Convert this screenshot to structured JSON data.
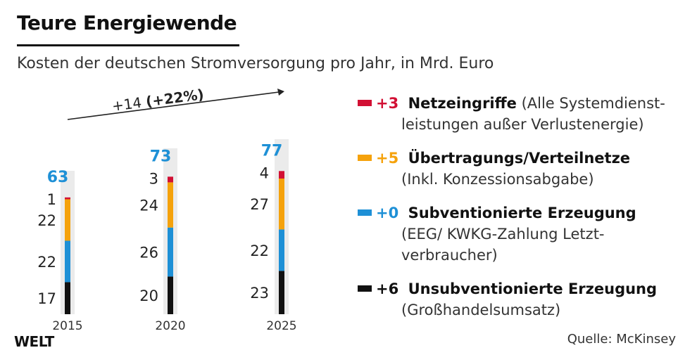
{
  "title": "Teure Energiewende",
  "subtitle": "Kosten der deutschen Stromversorgung pro Jahr, in Mrd. Euro",
  "colors": {
    "red": "#d21034",
    "orange": "#f5a20c",
    "blue": "#1e90d6",
    "black": "#111111",
    "track": "#ebebeb",
    "total": "#1e90d6"
  },
  "chart_data": {
    "type": "bar",
    "stacked": true,
    "categories": [
      "2015",
      "2020",
      "2025"
    ],
    "totals": [
      "63",
      "73",
      "77"
    ],
    "ylim": [
      0,
      77
    ],
    "series": [
      {
        "name": "Unsubventionierte Erzeugung",
        "color": "#111111",
        "values": [
          17,
          20,
          23
        ]
      },
      {
        "name": "Subventionierte Erzeugung",
        "color": "#1e90d6",
        "values": [
          22,
          26,
          22
        ]
      },
      {
        "name": "Übertragungs/Verteilnetze",
        "color": "#f5a20c",
        "values": [
          22,
          24,
          27
        ]
      },
      {
        "name": "Netzeingriffe",
        "color": "#d21034",
        "values": [
          1,
          3,
          4
        ]
      }
    ],
    "change_annotation": {
      "delta": "+14",
      "pct": "(+22%)"
    }
  },
  "legend": [
    {
      "delta": "+3",
      "name": "Netzeingriffe",
      "note": "(Alle Systemdienst-",
      "note2": "leistungen außer Verlustenergie)",
      "note3": "",
      "color": "#d21034"
    },
    {
      "delta": "+5",
      "name": "Übertragungs/Verteilnetze",
      "note": "",
      "note2": "(Inkl. Konzessionsabgabe)",
      "note3": "",
      "color": "#f5a20c"
    },
    {
      "delta": "+0",
      "name": "Subventionierte Erzeugung",
      "note": "",
      "note2": "(EEG/ KWKG-Zahlung Letzt-",
      "note3": "verbraucher)",
      "color": "#1e90d6"
    },
    {
      "delta": "+6",
      "name": "Unsubventionierte Erzeugung",
      "note": "",
      "note2": "(Großhandelsumsatz)",
      "note3": "",
      "color": "#111111"
    }
  ],
  "logo": "WELT",
  "source": "Quelle: McKinsey"
}
